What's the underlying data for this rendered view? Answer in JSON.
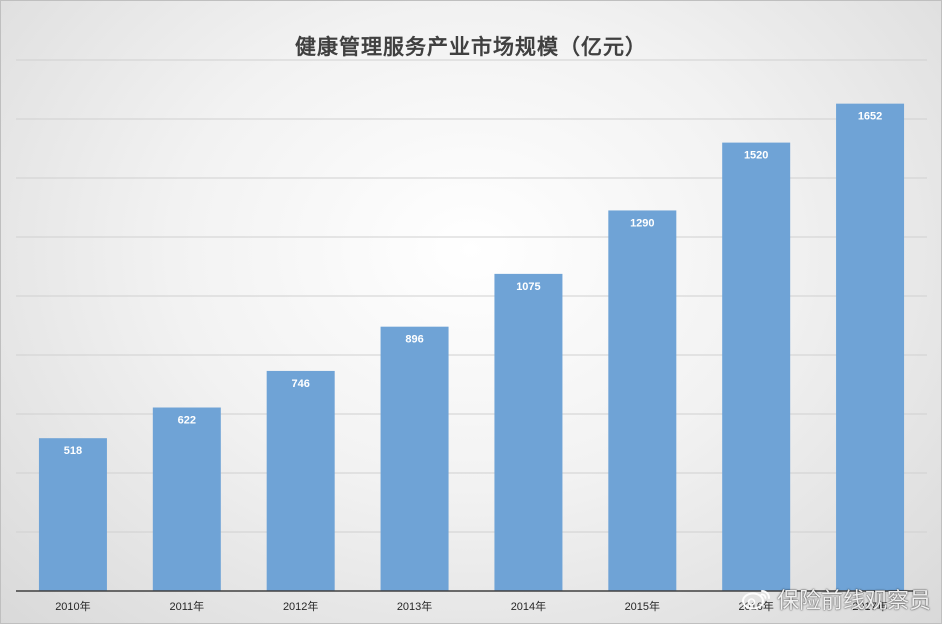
{
  "chart_data": {
    "type": "bar",
    "title": "健康管理服务产业市场规模（亿元）",
    "categories": [
      "2010年",
      "2011年",
      "2012年",
      "2013年",
      "2014年",
      "2015年",
      "2016年",
      "2017年"
    ],
    "values": [
      518,
      622,
      746,
      896,
      1075,
      1290,
      1520,
      1652
    ],
    "xlabel": "",
    "ylabel": "",
    "ylim": [
      0,
      1800
    ],
    "grid": true,
    "data_labels": true,
    "bar_color": "#6fa3d6"
  },
  "watermark": {
    "text": "保险前线观察员",
    "icon": "weibo-icon"
  }
}
